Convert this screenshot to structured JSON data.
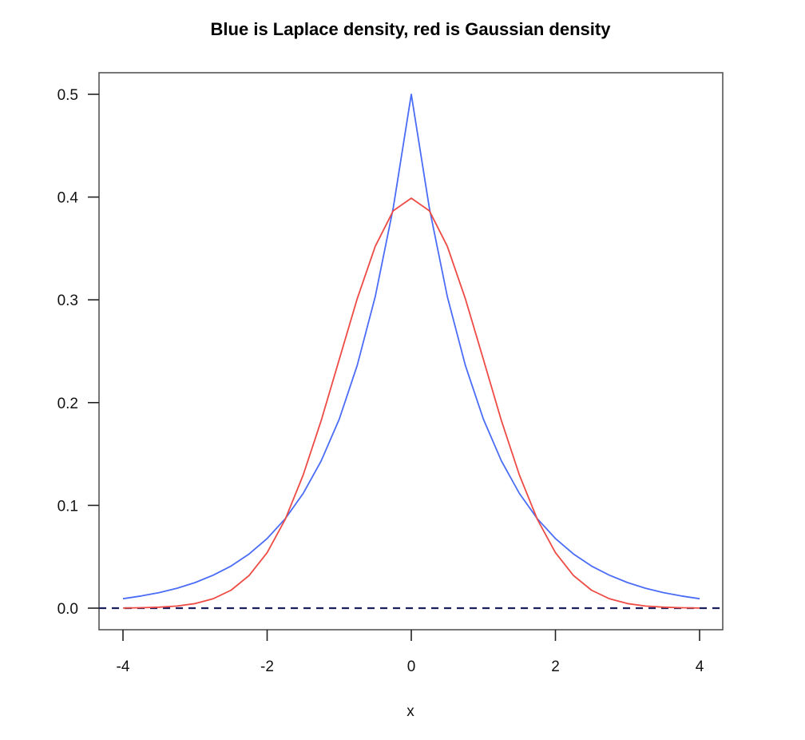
{
  "chart_data": {
    "type": "line",
    "title": "Blue is Laplace density, red is Gaussian density",
    "xlabel": "x",
    "ylabel": "",
    "xlim": [
      -4.2,
      4.3
    ],
    "ylim": [
      -0.02,
      0.52
    ],
    "x_ticks": [
      "-4",
      "-2",
      "0",
      "2",
      "4"
    ],
    "y_ticks": [
      "0.0",
      "0.1",
      "0.2",
      "0.3",
      "0.4",
      "0.5"
    ],
    "grid": false,
    "x": [
      -4,
      -3.75,
      -3.5,
      -3.25,
      -3,
      -2.75,
      -2.5,
      -2.25,
      -2,
      -1.75,
      -1.5,
      -1.25,
      -1,
      -0.75,
      -0.5,
      -0.25,
      0,
      0.25,
      0.5,
      0.75,
      1,
      1.25,
      1.5,
      1.75,
      2,
      2.25,
      2.5,
      2.75,
      3,
      3.25,
      3.5,
      3.75,
      4
    ],
    "series": [
      {
        "color": "#4a6cf7",
        "values": [
          0.0092,
          0.0118,
          0.0151,
          0.0194,
          0.0249,
          0.032,
          0.041,
          0.0527,
          0.0677,
          0.0869,
          0.1116,
          0.1433,
          0.1839,
          0.2362,
          0.3033,
          0.3894,
          0.5,
          0.3894,
          0.3033,
          0.2362,
          0.1839,
          0.1433,
          0.1116,
          0.0869,
          0.0677,
          0.0527,
          0.041,
          0.032,
          0.0249,
          0.0194,
          0.0151,
          0.0118,
          0.0092
        ]
      },
      {
        "color": "#ee4b45",
        "values": [
          0.0001,
          0.0004,
          0.0009,
          0.002,
          0.0044,
          0.0091,
          0.0175,
          0.0317,
          0.054,
          0.0863,
          0.1295,
          0.1826,
          0.242,
          0.3011,
          0.3521,
          0.3867,
          0.3989,
          0.3867,
          0.3521,
          0.3011,
          0.242,
          0.1826,
          0.1295,
          0.0863,
          0.054,
          0.0317,
          0.0175,
          0.0091,
          0.0044,
          0.002,
          0.0009,
          0.0004,
          0.0001
        ]
      }
    ],
    "reference_line": {
      "y": 0,
      "style": "dashed",
      "color": "#1c1f5e"
    }
  }
}
